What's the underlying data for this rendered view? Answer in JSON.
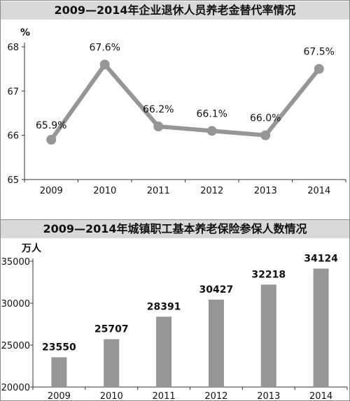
{
  "chart_data": [
    {
      "type": "line",
      "title": "2009—2014年企业退休人员养老金替代率情况",
      "unit": "%",
      "categories": [
        "2009",
        "2010",
        "2011",
        "2012",
        "2013",
        "2014"
      ],
      "values": [
        65.9,
        67.6,
        66.2,
        66.1,
        66.0,
        67.5
      ],
      "value_labels": [
        "65.9%",
        "67.6%",
        "66.2%",
        "66.1%",
        "66.0%",
        "67.5%"
      ],
      "ylim": [
        65,
        68
      ],
      "yticks": [
        65,
        66,
        67,
        68
      ],
      "grid": false,
      "color": "#969696"
    },
    {
      "type": "bar",
      "title": "2009—2014年城镇职工基本养老保险参保人数情况",
      "unit": "万人",
      "categories": [
        "2009",
        "2010",
        "2011",
        "2012",
        "2013",
        "2014"
      ],
      "values": [
        23550,
        25707,
        28391,
        30427,
        32218,
        34124
      ],
      "value_labels": [
        "23550",
        "25707",
        "28391",
        "30427",
        "32218",
        "34124"
      ],
      "ylim": [
        20000,
        35000
      ],
      "yticks": [
        20000,
        25000,
        30000,
        35000
      ],
      "grid": false,
      "color": "#969696"
    }
  ]
}
